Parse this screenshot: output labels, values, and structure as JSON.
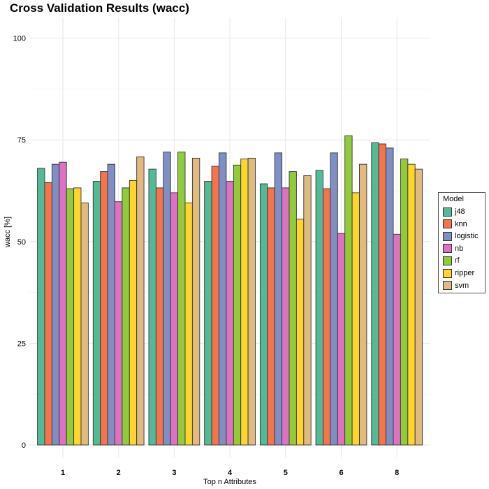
{
  "chart_data": {
    "type": "bar",
    "title": "Cross Validation Results (wacc)",
    "xlabel": "Top n Attributes",
    "ylabel": "wacc [%]",
    "ylim": [
      0,
      105
    ],
    "yticks": [
      0,
      25,
      50,
      75,
      100
    ],
    "grid": true,
    "legend": {
      "title": "Model",
      "position": "right"
    },
    "categories": [
      "1",
      "2",
      "3",
      "4",
      "5",
      "6",
      "8"
    ],
    "series": [
      {
        "name": "j48",
        "color": "#52BA96",
        "values": [
          68.0,
          64.8,
          67.8,
          64.8,
          64.2,
          67.5,
          74.3
        ]
      },
      {
        "name": "knn",
        "color": "#F5734D",
        "values": [
          64.5,
          67.2,
          63.2,
          68.5,
          63.2,
          63.0,
          74.0
        ]
      },
      {
        "name": "logistic",
        "color": "#7F8FC4",
        "values": [
          69.0,
          69.0,
          72.0,
          71.8,
          71.8,
          71.8,
          73.0
        ]
      },
      {
        "name": "nb",
        "color": "#DD73C0",
        "values": [
          69.5,
          59.8,
          62.0,
          64.8,
          63.2,
          52.0,
          51.8
        ]
      },
      {
        "name": "rf",
        "color": "#90CC39",
        "values": [
          63.0,
          63.2,
          72.0,
          68.8,
          67.2,
          76.0,
          70.3
        ]
      },
      {
        "name": "ripper",
        "color": "#FDD52D",
        "values": [
          63.2,
          65.0,
          59.5,
          70.3,
          55.5,
          62.0,
          69.0
        ]
      },
      {
        "name": "svm",
        "color": "#E0BA7F",
        "values": [
          59.5,
          70.8,
          70.5,
          70.5,
          66.2,
          69.0,
          67.8
        ]
      }
    ]
  }
}
